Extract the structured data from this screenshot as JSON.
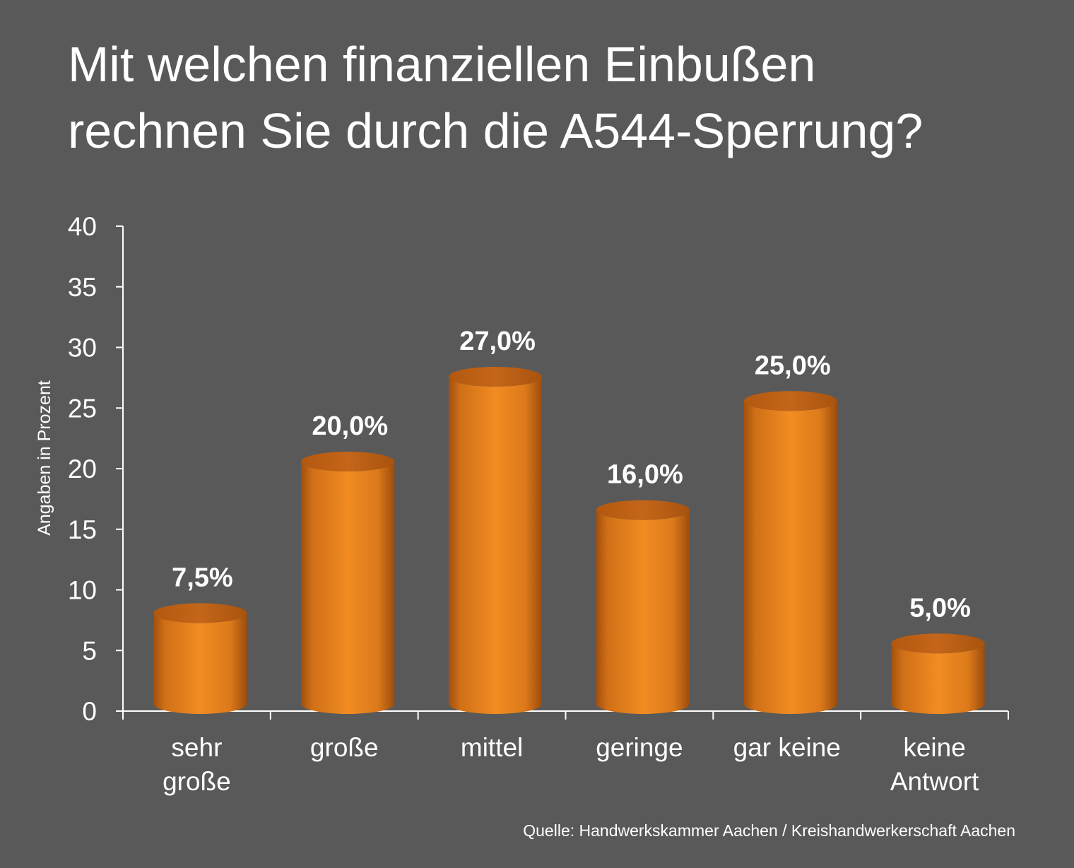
{
  "chart_data": {
    "type": "bar",
    "title": "Mit welchen finanziellen Einbußen\nrechnen Sie durch die A544-Sperrung?",
    "ylabel": "Angaben in Prozent",
    "xlabel": "",
    "ylim": [
      0,
      40
    ],
    "yticks": [
      0,
      5,
      10,
      15,
      20,
      25,
      30,
      35,
      40
    ],
    "categories": [
      "sehr große",
      "große",
      "mittel",
      "geringe",
      "gar keine",
      "keine Antwort"
    ],
    "category_lines": [
      [
        "sehr",
        "große"
      ],
      [
        "große"
      ],
      [
        "mittel"
      ],
      [
        "geringe"
      ],
      [
        "gar keine"
      ],
      [
        "keine",
        "Antwort"
      ]
    ],
    "values": [
      7.5,
      20.0,
      27.0,
      16.0,
      25.0,
      5.0
    ],
    "value_labels": [
      "7,5%",
      "20,0%",
      "27,0%",
      "16,0%",
      "25,0%",
      "5,0%"
    ],
    "bar_color": "#ee8a23",
    "bar_style": "3d-cylinder",
    "grid": false,
    "legend": "none"
  },
  "source": "Quelle: Handwerkskammer Aachen / Kreishandwerkerschaft Aachen",
  "colors": {
    "background": "#595959",
    "axis": "#ffffff",
    "text": "#ffffff"
  }
}
